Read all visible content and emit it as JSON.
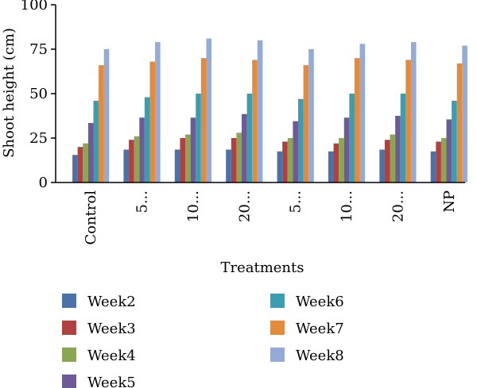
{
  "chart_data": {
    "type": "bar",
    "title": "",
    "xlabel": "Treatments",
    "ylabel": "Shoot height (cm)",
    "ylim": [
      0,
      100
    ],
    "yticks": [
      0,
      25,
      50,
      75,
      100
    ],
    "grid": false,
    "legend_position": "bottom",
    "categories": [
      "Control",
      "5...",
      "10...",
      "20...",
      "5...",
      "10...",
      "20...",
      "NP"
    ],
    "series": [
      {
        "name": "Week2",
        "color": "#4a72a8",
        "values": [
          15.5,
          18.5,
          18.5,
          18.5,
          17.5,
          17.5,
          18.5,
          17.5
        ]
      },
      {
        "name": "Week3",
        "color": "#b0413e",
        "values": [
          20,
          24,
          25,
          25,
          23,
          22,
          24,
          23
        ]
      },
      {
        "name": "Week4",
        "color": "#8aa653",
        "values": [
          22,
          26,
          27,
          28,
          25,
          25,
          27,
          25
        ]
      },
      {
        "name": "Week5",
        "color": "#6e5a96",
        "values": [
          33.5,
          36.5,
          36.5,
          38.5,
          34.5,
          36.5,
          37.5,
          35.5
        ]
      },
      {
        "name": "Week6",
        "color": "#3d9db0",
        "values": [
          46,
          48,
          50,
          50,
          47,
          50,
          50,
          46
        ]
      },
      {
        "name": "Week7",
        "color": "#e48a3b",
        "values": [
          66,
          68,
          70,
          69,
          66,
          70,
          69,
          67
        ]
      },
      {
        "name": "Week8",
        "color": "#93abd6",
        "values": [
          75,
          79,
          81,
          80,
          75,
          78,
          79,
          77
        ]
      }
    ]
  }
}
